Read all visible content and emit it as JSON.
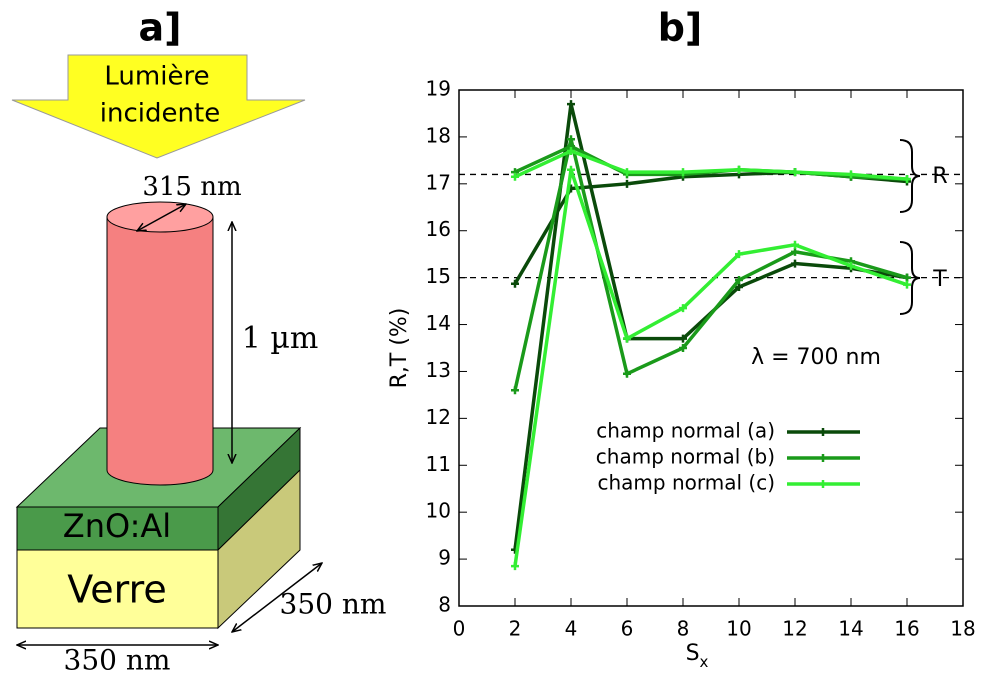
{
  "panel_a": {
    "title": "a]",
    "light_line1": "Lumière",
    "light_line2": "incidente",
    "diameter": "315 nm",
    "height": "1 µm",
    "layer": "ZnO:Al",
    "substrate": "Verre",
    "depth": "350 nm",
    "width": "350 nm"
  },
  "chart_data": {
    "type": "line",
    "title": "b]",
    "xlabel": {
      "main": "S",
      "sub": "x"
    },
    "ylabel": "R,T (%)",
    "annotation": "λ = 700 nm",
    "r_label": "R",
    "t_label": "T",
    "x": [
      2,
      4,
      6,
      8,
      10,
      12,
      14,
      16
    ],
    "series": [
      {
        "name": "champ normal (a)",
        "color": "#0a4a0a",
        "R": [
          14.87,
          16.9,
          17.0,
          17.15,
          17.2,
          17.25,
          17.15,
          17.05
        ],
        "T": [
          9.2,
          18.7,
          13.7,
          13.7,
          14.8,
          15.3,
          15.2,
          15.0
        ]
      },
      {
        "name": "champ normal (b)",
        "color": "#1a9a1a",
        "R": [
          17.25,
          17.8,
          17.2,
          17.2,
          17.3,
          17.25,
          17.15,
          17.1
        ],
        "T": [
          12.6,
          17.95,
          12.95,
          13.5,
          14.95,
          15.55,
          15.35,
          15.0
        ]
      },
      {
        "name": "champ normal (c)",
        "color": "#33ee33",
        "R": [
          17.15,
          17.7,
          17.25,
          17.25,
          17.3,
          17.25,
          17.2,
          17.1
        ],
        "T": [
          8.85,
          17.3,
          13.7,
          14.35,
          15.5,
          15.7,
          15.25,
          14.85
        ]
      }
    ],
    "reference_lines": [
      17.2,
      15
    ],
    "xlim": [
      0,
      18
    ],
    "xticks": [
      0,
      2,
      4,
      6,
      8,
      10,
      12,
      14,
      16,
      18
    ],
    "ylim": [
      8,
      19
    ],
    "yticks": [
      8,
      9,
      10,
      11,
      12,
      13,
      14,
      15,
      16,
      17,
      18,
      19
    ]
  }
}
